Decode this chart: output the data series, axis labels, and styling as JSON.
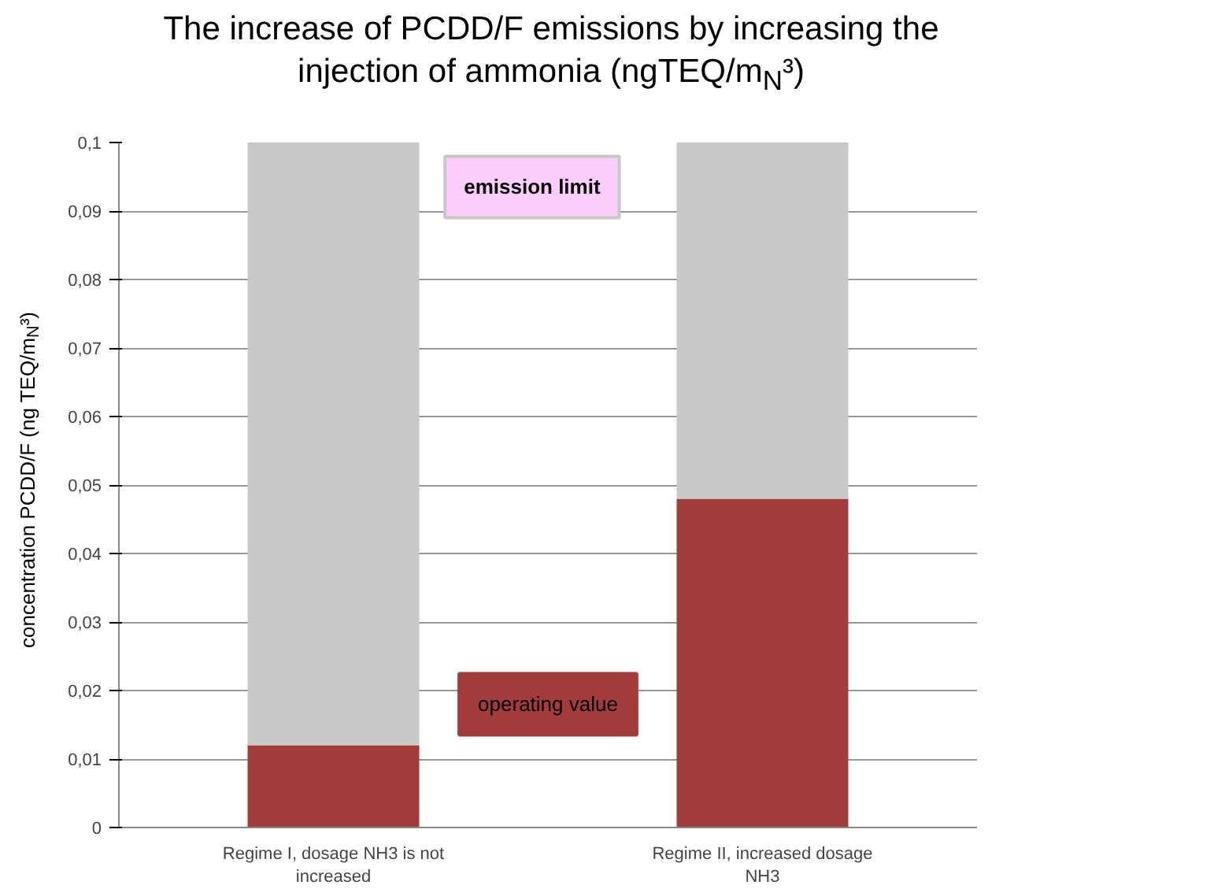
{
  "chart_data": {
    "type": "bar",
    "stacked": true,
    "title": "The increase of PCDD/F emissions by increasing the injection of ammonia (ngTEQ/m$_{N}$³)",
    "ylabel": "concentration PCDD/F (ng TEQ/m$_{N}$³)",
    "categories": [
      "Regime I, dosage NH3 is not increased",
      "Regime II, increased dosage NH3"
    ],
    "series": [
      {
        "name": "operating value",
        "color": "#a33b3b",
        "values": [
          0.012,
          0.048
        ]
      },
      {
        "name": "emission limit",
        "color": "#c8c8c8",
        "values": [
          0.088,
          0.052
        ]
      }
    ],
    "ylim": [
      0,
      0.1
    ],
    "yticks": [
      0,
      {
        "value": 0.01,
        "label": "0,01"
      },
      {
        "value": 0.02,
        "label": "0,02"
      },
      {
        "value": 0.03,
        "label": "0,03"
      },
      {
        "value": 0.04,
        "label": "0,04"
      },
      {
        "value": 0.05,
        "label": "0,05"
      },
      {
        "value": 0.06,
        "label": "0,06"
      },
      {
        "value": 0.07,
        "label": "0,07"
      },
      {
        "value": 0.08,
        "label": "0,08"
      },
      {
        "value": 0.09,
        "label": "0,09"
      },
      {
        "value": 0.1,
        "label": "0,1"
      }
    ],
    "grid": "y"
  }
}
